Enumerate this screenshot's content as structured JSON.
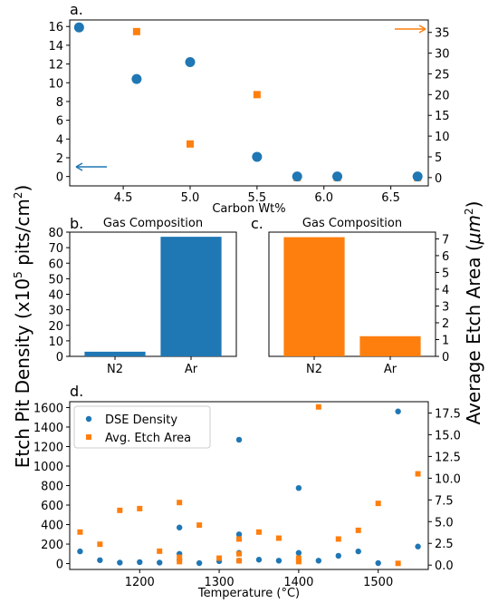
{
  "colors": {
    "blue": "#1f77b4",
    "orange": "#ff7f0e"
  },
  "shared_labels": {
    "left_ylabel": "Etch Pit Density (x10",
    "left_ylabel_sup": "5",
    "left_ylabel_tail": " pits/cm",
    "left_ylabel_sup2": "2",
    "left_ylabel_end": ")",
    "right_ylabel": "Average Etch Area (",
    "right_ylabel_unit": "μm",
    "right_ylabel_sup": "2",
    "right_ylabel_end": ")"
  },
  "chart_data": [
    {
      "panel": "a.",
      "type": "scatter",
      "xlabel": "Carbon Wt%",
      "xlim": [
        4.1,
        6.78
      ],
      "xticks": [
        4.5,
        5.0,
        5.5,
        6.0,
        6.5
      ],
      "xtick_labels": [
        "4.5",
        "5.0",
        "5.5",
        "6.0",
        "6.5"
      ],
      "ylim_left": [
        -1,
        16.7
      ],
      "yticks_left": [
        0,
        2,
        4,
        6,
        8,
        10,
        12,
        14,
        16
      ],
      "ylim_right": [
        -2,
        38
      ],
      "yticks_right": [
        0,
        5,
        10,
        15,
        20,
        25,
        30,
        35
      ],
      "series": [
        {
          "axis": "left",
          "marker": "circle",
          "color": "#1f77b4",
          "x": [
            4.17,
            4.6,
            5.0,
            5.5,
            5.8,
            6.1,
            6.7
          ],
          "y": [
            15.9,
            10.4,
            12.2,
            2.1,
            0,
            0,
            0
          ]
        },
        {
          "axis": "right",
          "marker": "square",
          "color": "#ff7f0e",
          "x": [
            4.17,
            4.6,
            5.0,
            5.5,
            5.8,
            6.1,
            6.7
          ],
          "y": [
            36.2,
            35.2,
            8.1,
            20.0,
            0,
            0,
            0
          ]
        }
      ],
      "annotations": [
        "left-arrow-blue",
        "right-arrow-orange"
      ]
    },
    {
      "panel": "b.",
      "type": "bar",
      "title": "Gas Composition",
      "categories": [
        "N2",
        "Ar"
      ],
      "values": [
        3,
        77
      ],
      "ylim": [
        0,
        80
      ],
      "yticks": [
        0,
        10,
        20,
        30,
        40,
        50,
        60,
        70,
        80
      ],
      "color": "#1f77b4"
    },
    {
      "panel": "c.",
      "type": "bar",
      "title": "Gas Composition",
      "categories": [
        "N2",
        "Ar"
      ],
      "values": [
        7.1,
        1.2
      ],
      "ylim": [
        0,
        7.4
      ],
      "yticks": [
        0,
        1,
        2,
        3,
        4,
        5,
        6,
        7
      ],
      "color": "#ff7f0e"
    },
    {
      "panel": "d.",
      "type": "scatter",
      "xlabel": "Temperature (°C)",
      "xlim": [
        1112,
        1563
      ],
      "xticks": [
        1200,
        1300,
        1400,
        1500
      ],
      "xtick_labels": [
        "1200",
        "1300",
        "1400",
        "1500"
      ],
      "ylim_left": [
        -60,
        1660
      ],
      "yticks_left": [
        0,
        200,
        400,
        600,
        800,
        1000,
        1200,
        1400,
        1600
      ],
      "ylim_right": [
        -0.5,
        18.8
      ],
      "yticks_right": [
        0.0,
        2.5,
        5.0,
        7.5,
        10.0,
        12.5,
        15.0,
        17.5
      ],
      "ytick_labels_right": [
        "0.0",
        "2.5",
        "5.0",
        "7.5",
        "10.0",
        "12.5",
        "15.0",
        "17.5"
      ],
      "legend_loc": "upper left",
      "series": [
        {
          "name": "DSE Density",
          "axis": "left",
          "marker": "circle",
          "color": "#1f77b4",
          "x": [
            1125,
            1150,
            1175,
            1200,
            1225,
            1250,
            1250,
            1250,
            1275,
            1300,
            1325,
            1325,
            1325,
            1325,
            1350,
            1375,
            1400,
            1400,
            1425,
            1450,
            1475,
            1500,
            1525,
            1550
          ],
          "y": [
            125,
            35,
            10,
            15,
            10,
            370,
            100,
            40,
            5,
            25,
            1270,
            300,
            110,
            30,
            40,
            30,
            775,
            110,
            30,
            80,
            125,
            5,
            1560,
            175
          ]
        },
        {
          "name": "Avg. Etch Area",
          "axis": "right",
          "marker": "square",
          "color": "#ff7f0e",
          "x": [
            1125,
            1150,
            1175,
            1200,
            1225,
            1250,
            1250,
            1250,
            1275,
            1300,
            1325,
            1325,
            1325,
            1350,
            1375,
            1400,
            1400,
            1425,
            1450,
            1475,
            1500,
            1525,
            1550
          ],
          "y": [
            3.8,
            2.4,
            6.3,
            6.5,
            1.6,
            7.2,
            0.9,
            0.4,
            4.6,
            0.8,
            3.0,
            1.3,
            0.5,
            3.8,
            3.1,
            0.8,
            0.4,
            18.2,
            3.0,
            4.0,
            7.1,
            0.2,
            10.5
          ]
        }
      ]
    }
  ]
}
